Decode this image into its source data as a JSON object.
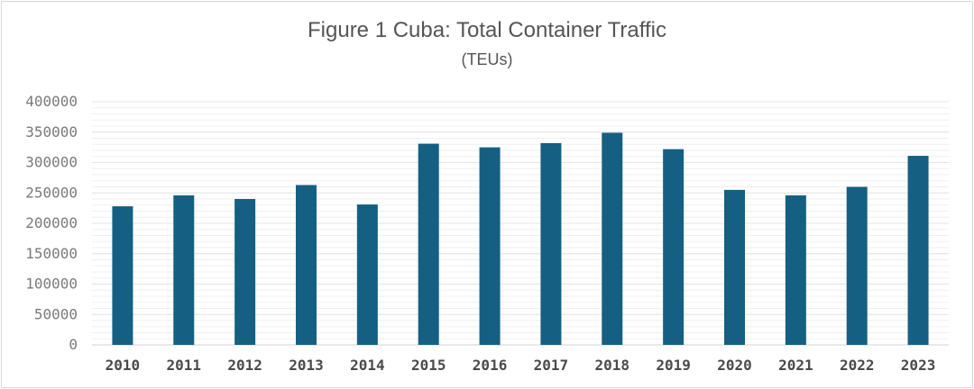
{
  "chart_data": {
    "type": "bar",
    "title": "Figure 1 Cuba: Total Container Traffic",
    "subtitle": "(TEUs)",
    "xlabel": "",
    "ylabel": "",
    "categories": [
      "2010",
      "2011",
      "2012",
      "2013",
      "2014",
      "2015",
      "2016",
      "2017",
      "2018",
      "2019",
      "2020",
      "2021",
      "2022",
      "2023"
    ],
    "values": [
      228000,
      246000,
      240000,
      263000,
      231000,
      331000,
      325000,
      332000,
      349000,
      322000,
      255000,
      246000,
      260000,
      311000
    ],
    "ylim": [
      0,
      400000
    ],
    "yticks": [
      "0",
      "50000",
      "100000",
      "150000",
      "200000",
      "250000",
      "300000",
      "350000",
      "400000"
    ],
    "grid": true,
    "legend": "none",
    "colors": {
      "bar": "#156082",
      "grid": "#e3e3e3",
      "axis": "#d0d0d0"
    }
  }
}
